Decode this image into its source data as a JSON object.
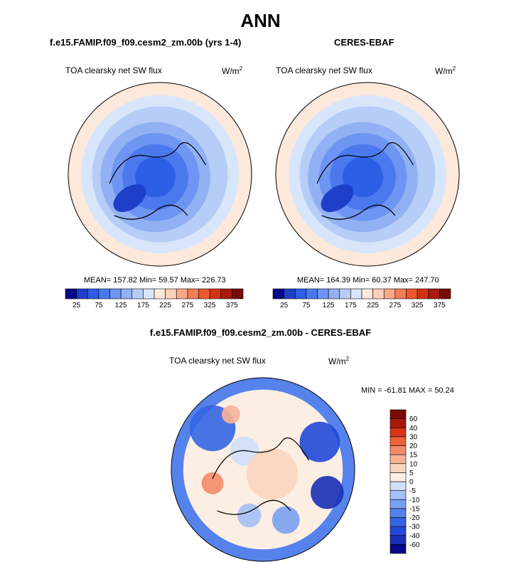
{
  "header": {
    "title": "ANN"
  },
  "panels": {
    "model": {
      "title": "f.e15.FAMIP.f09_f09.cesm2_zm.00b (yrs 1-4)",
      "variable": "TOA clearsky net SW flux",
      "units_base": "W/m",
      "units_exp": "2",
      "stats": "MEAN= 157.82  Min=  59.57  Max= 226.73"
    },
    "obs": {
      "title": "CERES-EBAF",
      "variable": "TOA clearsky net SW flux",
      "units_base": "W/m",
      "units_exp": "2",
      "stats": "MEAN= 164.39  Min=  60.37  Max= 247.70"
    },
    "diff": {
      "title": "f.e15.FAMIP.f09_f09.cesm2_zm.00b - CERES-EBAF",
      "variable": "TOA clearsky net SW flux",
      "units_base": "W/m",
      "units_exp": "2",
      "stats": "MIN = -61.81 MAX =  50.24"
    }
  },
  "chart_data": [
    {
      "type": "heatmap",
      "projection": "north-polar-stereographic",
      "title": "f.e15.FAMIP.f09_f09.cesm2_zm.00b (yrs 1-4)",
      "variable": "TOA clearsky net SW flux",
      "units": "W/m2",
      "mean": 157.82,
      "min": 59.57,
      "max": 226.73,
      "colorbar": {
        "orientation": "horizontal",
        "levels": [
          25,
          50,
          75,
          100,
          125,
          150,
          175,
          200,
          225,
          250,
          275,
          300,
          325,
          350,
          375
        ],
        "tick_labels": [
          "25",
          "75",
          "125",
          "175",
          "225",
          "275",
          "325",
          "375"
        ],
        "colors": [
          "#08088a",
          "#1f3fc8",
          "#2c5ee6",
          "#4a79ee",
          "#6f95f2",
          "#92b1f4",
          "#b6cdf7",
          "#d8e6fb",
          "#fde9dc",
          "#fbd1b8",
          "#f8a888",
          "#f47c56",
          "#ee5a2e",
          "#d23318",
          "#a61b0b",
          "#7a0a05"
        ]
      }
    },
    {
      "type": "heatmap",
      "projection": "north-polar-stereographic",
      "title": "CERES-EBAF",
      "variable": "TOA clearsky net SW flux",
      "units": "W/m2",
      "mean": 164.39,
      "min": 60.37,
      "max": 247.7,
      "colorbar": {
        "orientation": "horizontal",
        "levels": [
          25,
          50,
          75,
          100,
          125,
          150,
          175,
          200,
          225,
          250,
          275,
          300,
          325,
          350,
          375
        ],
        "tick_labels": [
          "25",
          "75",
          "125",
          "175",
          "225",
          "275",
          "325",
          "375"
        ],
        "colors": [
          "#08088a",
          "#1f3fc8",
          "#2c5ee6",
          "#4a79ee",
          "#6f95f2",
          "#92b1f4",
          "#b6cdf7",
          "#d8e6fb",
          "#fde9dc",
          "#fbd1b8",
          "#f8a888",
          "#f47c56",
          "#ee5a2e",
          "#d23318",
          "#a61b0b",
          "#7a0a05"
        ]
      }
    },
    {
      "type": "heatmap",
      "projection": "north-polar-stereographic",
      "title": "f.e15.FAMIP.f09_f09.cesm2_zm.00b - CERES-EBAF",
      "variable": "TOA clearsky net SW flux",
      "units": "W/m2",
      "min": -61.81,
      "max": 50.24,
      "colorbar": {
        "orientation": "vertical",
        "levels": [
          -60,
          -40,
          -30,
          -20,
          -15,
          -10,
          -5,
          0,
          5,
          10,
          15,
          20,
          30,
          40,
          60
        ],
        "tick_labels": [
          "-60",
          "-40",
          "-30",
          "-20",
          "-15",
          "-10",
          "-5",
          "0",
          "5",
          "10",
          "15",
          "20",
          "30",
          "40",
          "60"
        ],
        "colors": [
          "#08088a",
          "#1a2fb5",
          "#2449d6",
          "#3465e4",
          "#5682ec",
          "#7aa0f0",
          "#a4c0f4",
          "#cfdff8",
          "#fdeee3",
          "#fbd5bd",
          "#f8b396",
          "#f48b68",
          "#ee6238",
          "#d4361a",
          "#a8190a",
          "#7a0a05"
        ]
      }
    }
  ]
}
